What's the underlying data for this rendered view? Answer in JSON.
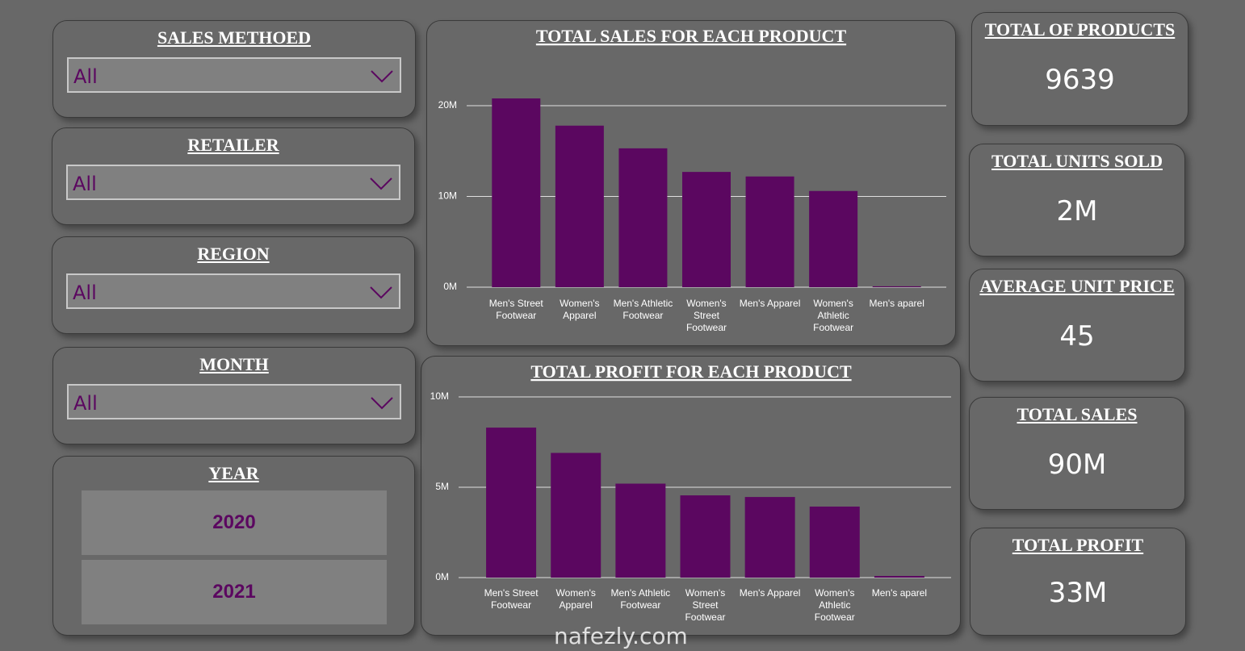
{
  "slicers": [
    {
      "title": "SALES METHOED",
      "value": "All"
    },
    {
      "title": "RETAILER",
      "value": "All"
    },
    {
      "title": "REGION",
      "value": "All"
    },
    {
      "title": "MONTH",
      "value": "All"
    }
  ],
  "year": {
    "title": "YEAR",
    "options": [
      "2020",
      "2021"
    ]
  },
  "cards": [
    {
      "title": "TOTAL OF PRODUCTS",
      "value": "9639"
    },
    {
      "title": "TOTAL UNITS SOLD",
      "value": "2M"
    },
    {
      "title": "AVERAGE UNIT PRICE",
      "value": "45"
    },
    {
      "title": "TOTAL SALES",
      "value": "90M"
    },
    {
      "title": "TOTAL PROFIT",
      "value": "33M"
    }
  ],
  "chart_data": [
    {
      "type": "bar",
      "title": "TOTAL SALES FOR EACH PRODUCT",
      "categories": [
        "Men's Street Footwear",
        "Women's Apparel",
        "Men's Athletic Footwear",
        "Women's Street Footwear",
        "Men's Apparel",
        "Women's Athletic Footwear",
        "Men's aparel"
      ],
      "values": [
        20.8,
        17.8,
        15.3,
        12.7,
        12.2,
        10.6,
        0.1
      ],
      "color": "#5b0760",
      "ylim": [
        0,
        20
      ],
      "yticks": [
        {
          "value": 0,
          "label": "0M"
        },
        {
          "value": 10,
          "label": "10M"
        },
        {
          "value": 20,
          "label": "20M"
        }
      ],
      "grid": true
    },
    {
      "type": "bar",
      "title": "TOTAL PROFIT FOR EACH PRODUCT",
      "categories": [
        "Men's Street Footwear",
        "Women's Apparel",
        "Men's Athletic Footwear",
        "Women's Street Footwear",
        "Men's Apparel",
        "Women's Athletic Footwear",
        "Men's aparel"
      ],
      "values": [
        8.3,
        6.9,
        5.2,
        4.55,
        4.46,
        3.93,
        0.09
      ],
      "color": "#5b0760",
      "ylim": [
        0,
        10
      ],
      "yticks": [
        {
          "value": 0,
          "label": "0M"
        },
        {
          "value": 5,
          "label": "5M"
        },
        {
          "value": 10,
          "label": "10M"
        }
      ],
      "grid": true
    }
  ],
  "watermark": "nafezly.com"
}
